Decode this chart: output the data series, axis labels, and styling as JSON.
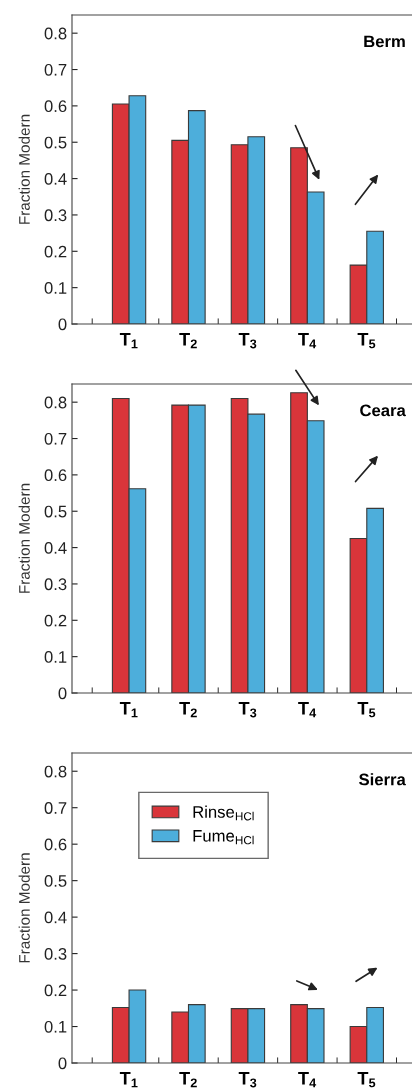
{
  "chart_data": [
    {
      "type": "bar",
      "title": "Berm",
      "ylabel": "Fraction Modern",
      "categories": [
        "T$_{1}$",
        "T$_{2}$",
        "T$_{3}$",
        "T$_{4}$",
        "T$_{5}$"
      ],
      "series": [
        {
          "color": "#d9353a",
          "values": [
            0.605,
            0.505,
            0.493,
            0.485,
            0.162
          ]
        },
        {
          "color": "#4daedb",
          "values": [
            0.628,
            0.587,
            0.515,
            0.363,
            0.255
          ]
        }
      ],
      "ylim": [
        0,
        0.85
      ],
      "yticks": [
        0,
        0.1,
        0.2,
        0.3,
        0.4,
        0.5,
        0.6,
        0.7,
        0.8
      ],
      "grid": false,
      "legend": false
    },
    {
      "type": "bar",
      "title": "Ceara",
      "ylabel": "Fraction Modern",
      "categories": [
        "T$_{1}$",
        "T$_{2}$",
        "T$_{3}$",
        "T$_{4}$",
        "T$_{5}$"
      ],
      "series": [
        {
          "color": "#d9353a",
          "values": [
            0.81,
            0.792,
            0.81,
            0.826,
            0.425
          ]
        },
        {
          "color": "#4daedb",
          "values": [
            0.562,
            0.792,
            0.767,
            0.749,
            0.508
          ]
        }
      ],
      "ylim": [
        0,
        0.85
      ],
      "yticks": [
        0,
        0.1,
        0.2,
        0.3,
        0.4,
        0.5,
        0.6,
        0.7,
        0.8
      ],
      "grid": false,
      "legend": false
    },
    {
      "type": "bar",
      "title": "Sierra",
      "ylabel": "Fraction Modern",
      "categories": [
        "T$_{1}$",
        "T$_{2}$",
        "T$_{3}$",
        "T$_{4}$",
        "T$_{5}$"
      ],
      "series": [
        {
          "name": "Rinse$_{HCl}$",
          "color": "#d9353a",
          "values": [
            0.152,
            0.14,
            0.149,
            0.16,
            0.1
          ]
        },
        {
          "name": "Fume$_{HCl}$",
          "color": "#4daedb",
          "values": [
            0.2,
            0.16,
            0.149,
            0.149,
            0.152
          ]
        }
      ],
      "ylim": [
        0,
        0.85
      ],
      "yticks": [
        0,
        0.1,
        0.2,
        0.3,
        0.4,
        0.5,
        0.6,
        0.7,
        0.8
      ],
      "grid": false,
      "legend": "top left"
    }
  ]
}
